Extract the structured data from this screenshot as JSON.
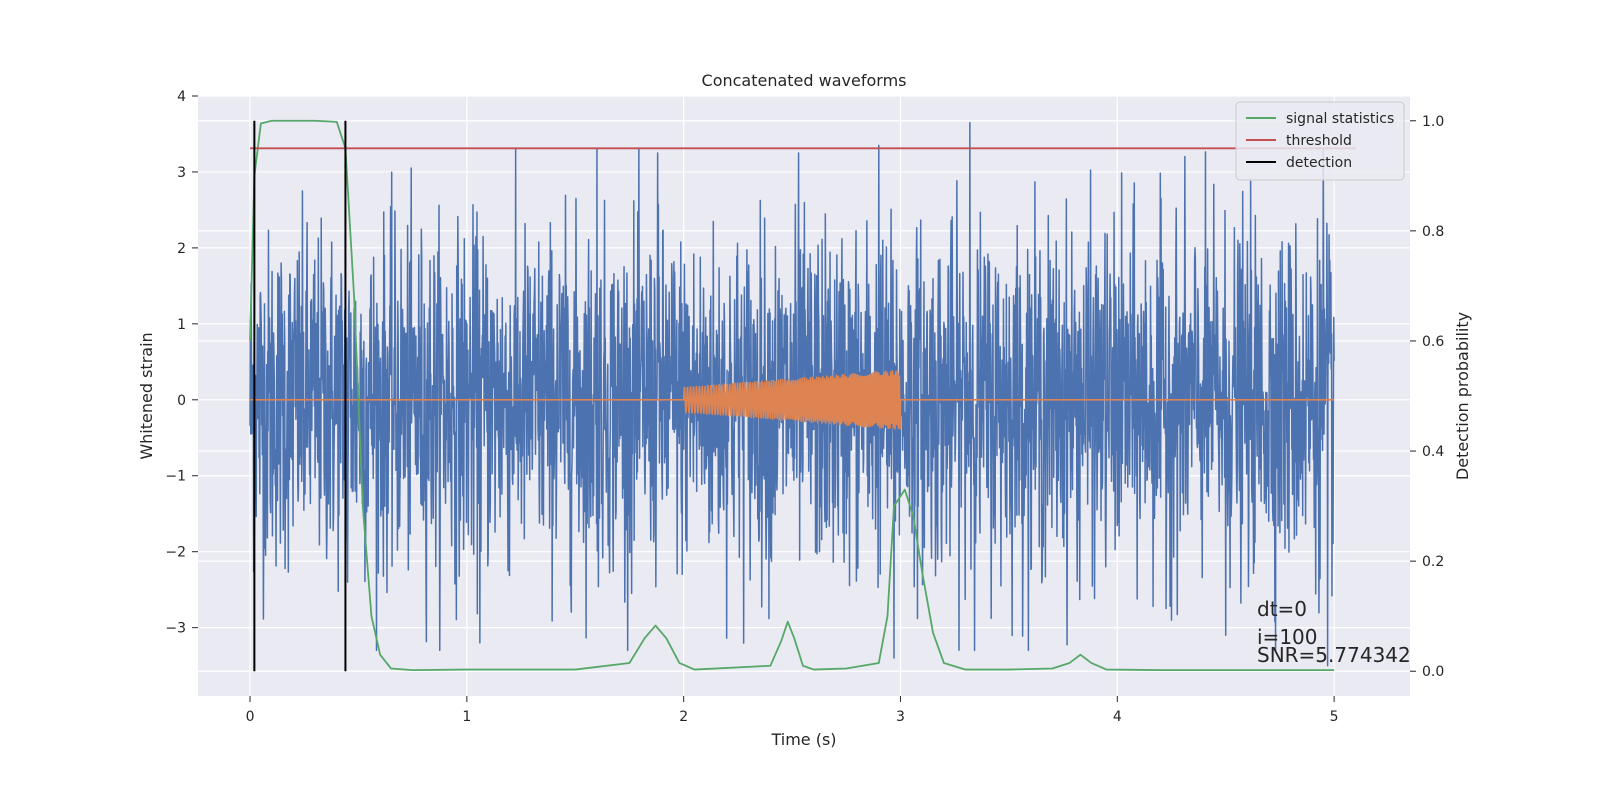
{
  "chart_data": {
    "type": "line",
    "title": "Concatenated waveforms",
    "xlabel": "Time (s)",
    "ylabel_left": "Whitened strain",
    "ylabel_right": "Detection probability",
    "xlim": [
      -0.24,
      5.35
    ],
    "ylim_left": [
      -3.9,
      4.0
    ],
    "ylim_right": [
      -0.045,
      1.045
    ],
    "x_ticks": [
      0,
      1,
      2,
      3,
      4,
      5
    ],
    "y_left_ticks": [
      -3,
      -2,
      -1,
      0,
      1,
      2,
      3,
      4
    ],
    "y_right_ticks": [
      0.0,
      0.2,
      0.4,
      0.6,
      0.8,
      1.0
    ],
    "grid": true,
    "legend_position": "top-right",
    "series": [
      {
        "name": "",
        "axis": "left",
        "color": "#4c72b0",
        "kind": "noise",
        "x_range": [
          0,
          5
        ],
        "typical_amplitude": 1.1,
        "peak_values": [
          {
            "x": 1.6,
            "y": 3.3
          },
          {
            "x": 1.88,
            "y": 3.25
          },
          {
            "x": 2.53,
            "y": 3.25
          },
          {
            "x": 2.9,
            "y": 3.35
          },
          {
            "x": 3.32,
            "y": 3.65
          },
          {
            "x": 4.95,
            "y": 3.3
          },
          {
            "x": 0.45,
            "y": -2.4
          },
          {
            "x": 1.06,
            "y": -3.2
          },
          {
            "x": 2.97,
            "y": -3.4
          },
          {
            "x": 4.5,
            "y": -3.1
          },
          {
            "x": 4.97,
            "y": -3.5
          }
        ]
      },
      {
        "name": "",
        "axis": "left",
        "color": "#dd8452",
        "kind": "chirp",
        "x": [
          0,
          2,
          3,
          5
        ],
        "amplitude": [
          0,
          0.17,
          0.4,
          0
        ]
      },
      {
        "name": "signal statistics",
        "axis": "right",
        "color": "#55a868",
        "x": [
          0.0,
          0.02,
          0.05,
          0.1,
          0.2,
          0.3,
          0.4,
          0.44,
          0.48,
          0.52,
          0.56,
          0.6,
          0.65,
          0.75,
          1.0,
          1.5,
          1.75,
          1.82,
          1.87,
          1.92,
          1.98,
          2.05,
          2.4,
          2.45,
          2.48,
          2.51,
          2.55,
          2.6,
          2.75,
          2.9,
          2.94,
          2.97,
          3.02,
          3.06,
          3.1,
          3.15,
          3.2,
          3.3,
          3.5,
          3.7,
          3.78,
          3.83,
          3.88,
          3.95,
          4.2,
          4.6,
          5.0
        ],
        "values": [
          0.6,
          0.9,
          0.995,
          1.0,
          1.0,
          1.0,
          0.998,
          0.95,
          0.68,
          0.3,
          0.1,
          0.03,
          0.005,
          0.002,
          0.003,
          0.003,
          0.015,
          0.06,
          0.083,
          0.06,
          0.015,
          0.003,
          0.01,
          0.055,
          0.09,
          0.06,
          0.01,
          0.003,
          0.005,
          0.015,
          0.1,
          0.3,
          0.33,
          0.28,
          0.18,
          0.07,
          0.015,
          0.003,
          0.003,
          0.005,
          0.015,
          0.03,
          0.015,
          0.003,
          0.002,
          0.002,
          0.002
        ]
      },
      {
        "name": "threshold",
        "axis": "right",
        "color": "#c44e52",
        "x": [
          0,
          5.1
        ],
        "values": [
          0.95,
          0.95
        ]
      },
      {
        "name": "detection",
        "axis": "right",
        "color": "#000000",
        "kind": "vlines",
        "x": [
          0.02,
          0.44
        ],
        "ymin": 0.0,
        "ymax": 1.0
      }
    ],
    "annotations": [
      "dt=0",
      "i=100",
      "SNR=5.774342"
    ]
  }
}
